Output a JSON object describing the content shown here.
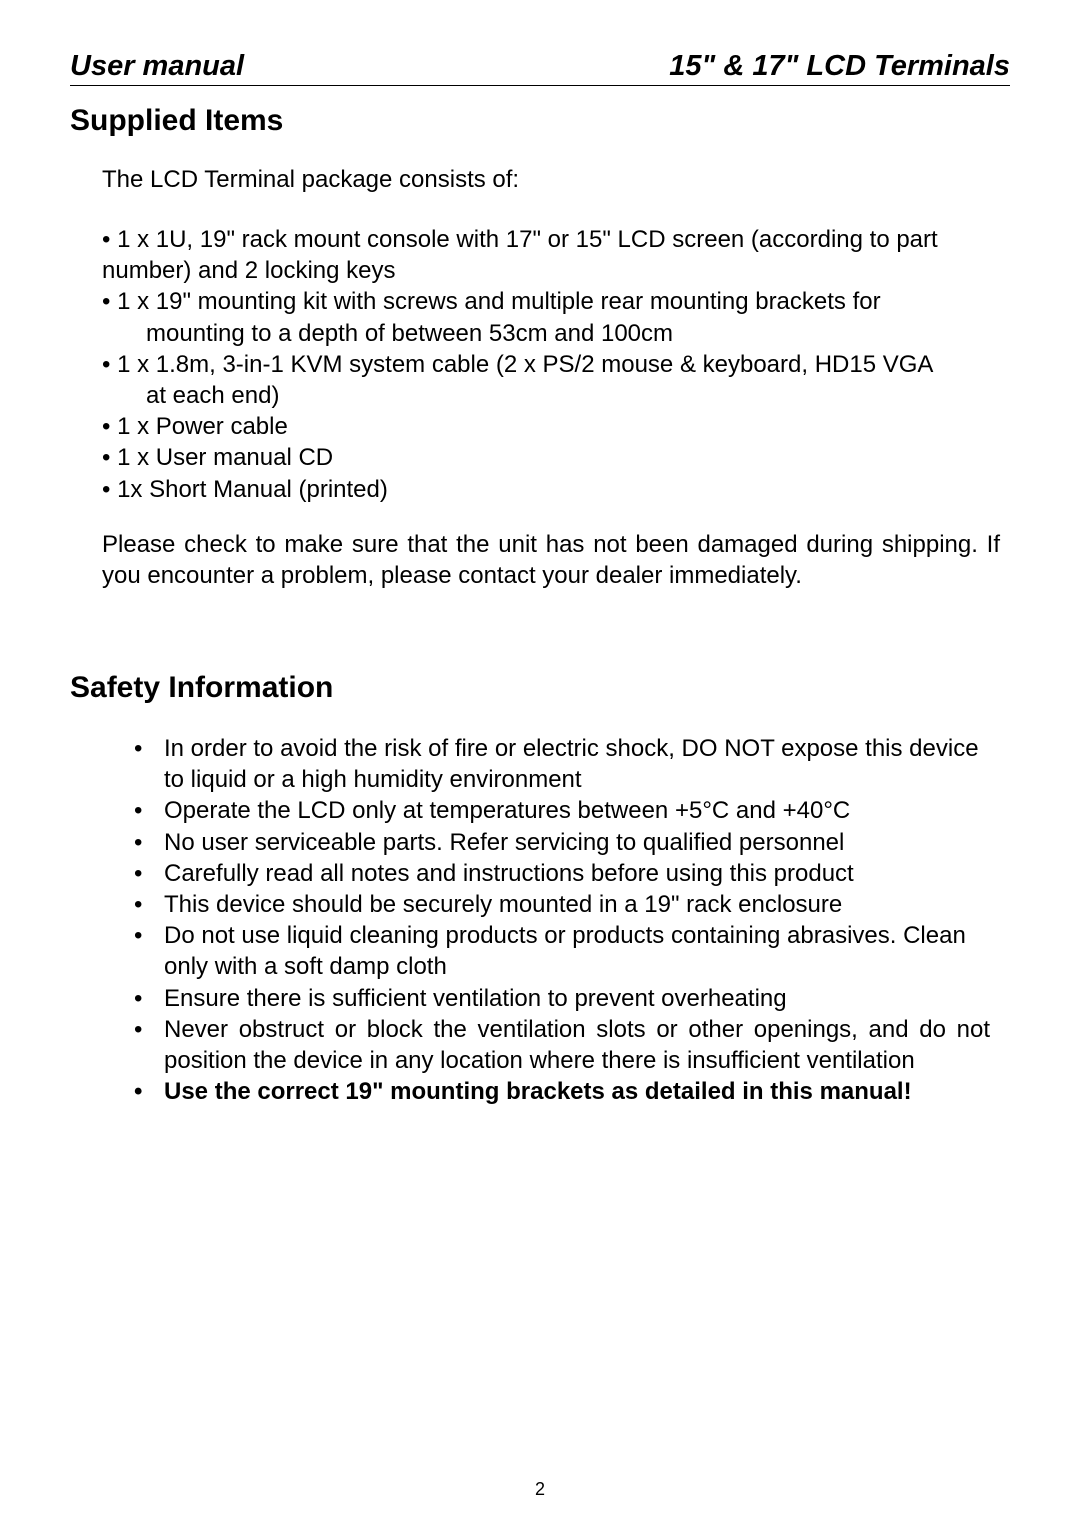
{
  "header": {
    "left": "User manual",
    "right": "15\" & 17\" LCD Terminals"
  },
  "section1": {
    "title": "Supplied Items",
    "intro": "The LCD Terminal package consists of:",
    "b1_l1": "•  1 x 1U, 19\" rack mount console with 17\" or 15\" LCD screen (according to part",
    "b1_l2": "number) and 2 locking keys",
    "b2_l1": "•  1 x 19\" mounting kit with screws and multiple rear mounting brackets for",
    "b2_l2": "mounting to a depth of between 53cm and 100cm",
    "b3_l1": "•  1 x 1.8m, 3-in-1 KVM system cable (2 x PS/2 mouse & keyboard, HD15 VGA",
    "b3_l2": "at each end)",
    "b4": "•  1 x Power cable",
    "b5": "•  1 x User manual CD",
    "b6": "•  1x Short Manual (printed)",
    "check": "Please check to make sure that the unit has not been damaged during shipping. If you encounter a problem, please contact your dealer immediately."
  },
  "section2": {
    "title": "Safety Information",
    "items": {
      "i1": "In order to avoid the risk of fire or electric shock, DO NOT expose this device to liquid or a high humidity environment",
      "i2": "Operate the LCD only at temperatures between +5°C and +40°C",
      "i3": "No user serviceable parts. Refer servicing to qualified personnel",
      "i4": "Carefully read all notes and instructions before using this product",
      "i5": "This device should be securely mounted in a 19\" rack enclosure",
      "i6": "Do not use liquid cleaning products or products containing abrasives. Clean only with a soft damp cloth",
      "i7": "Ensure there is sufficient ventilation to prevent overheating",
      "i8": "Never obstruct or block the ventilation slots or other openings, and do not position the device in any location where there is insufficient ventilation",
      "i9": "Use the correct 19\" mounting brackets as detailed in this manual!"
    }
  },
  "pageNumber": "2",
  "colors": {
    "text": "#000000",
    "background": "#ffffff",
    "rule": "#000000"
  },
  "typography": {
    "header_fontsize": 29,
    "section_title_fontsize": 30,
    "body_fontsize": 24,
    "page_number_fontsize": 18,
    "font_family": "Arial"
  }
}
